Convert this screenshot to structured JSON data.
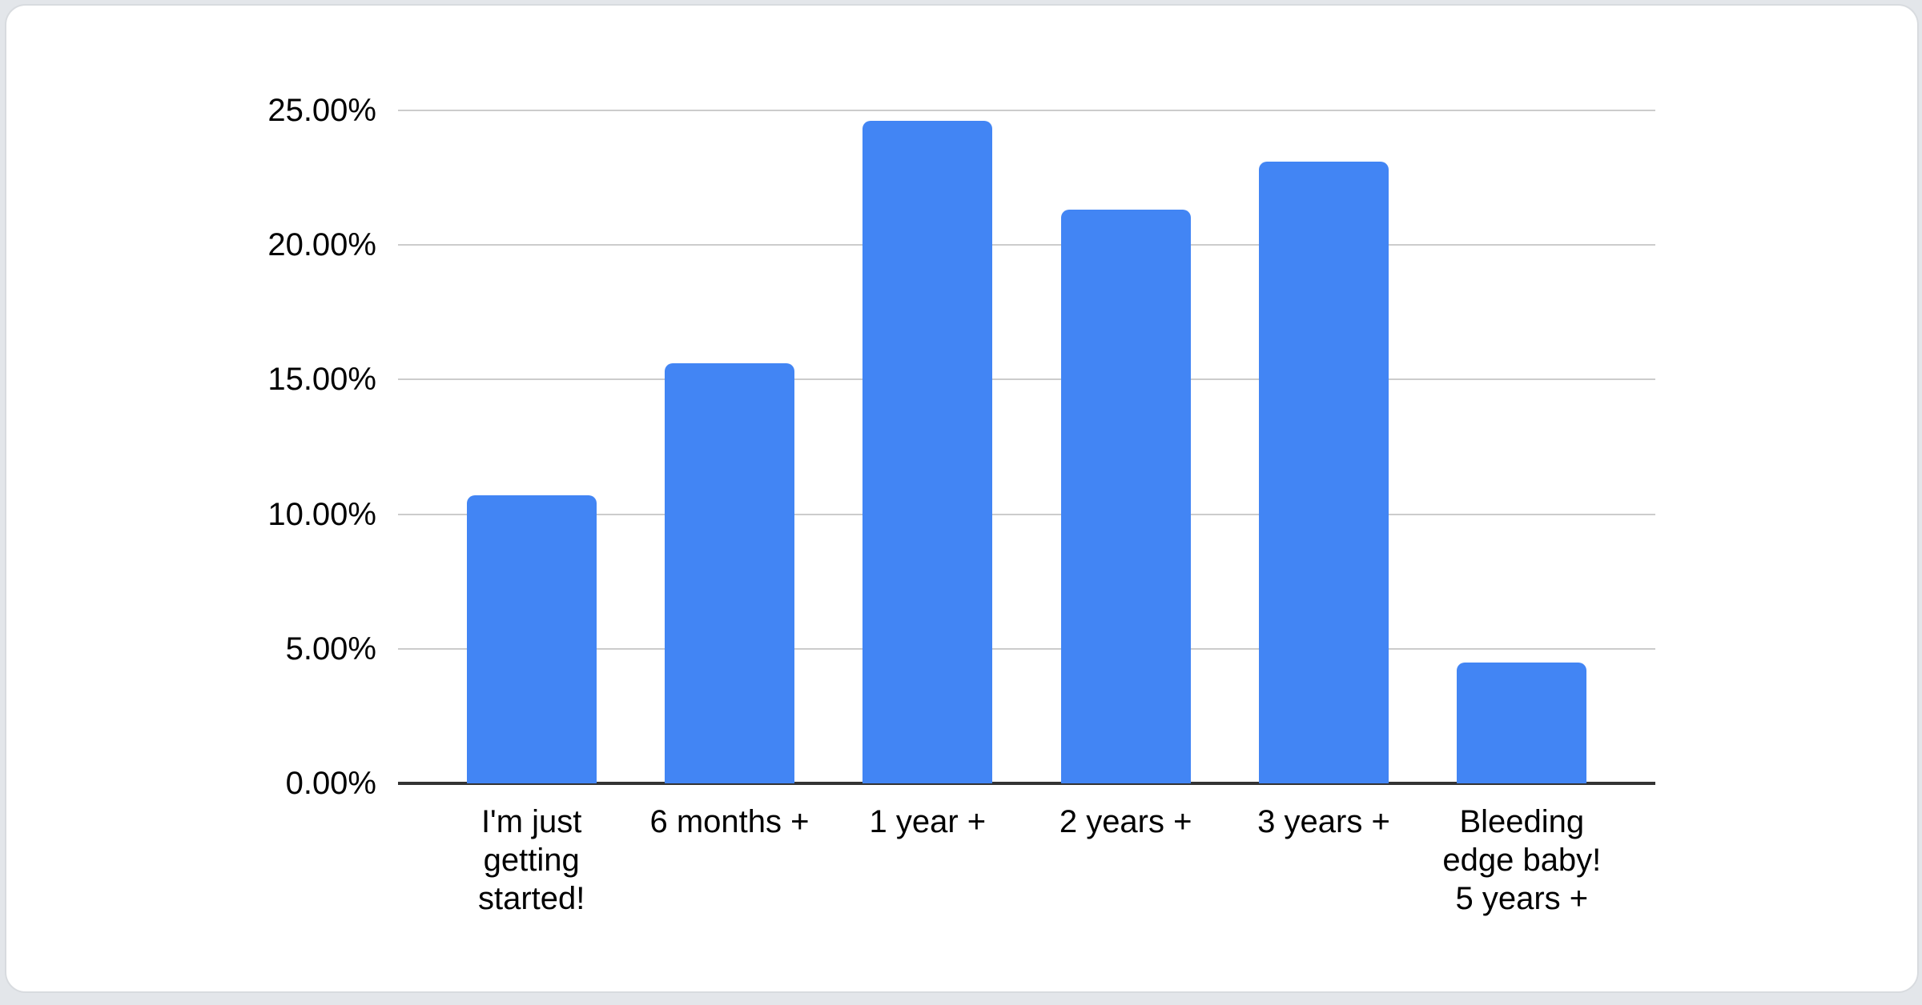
{
  "page": {
    "background_color": "#e3e6ea",
    "card_background": "#ffffff",
    "card_border_color": "#d8dbdf"
  },
  "chart_data": {
    "type": "bar",
    "categories": [
      "I'm just getting started!",
      "6 months +",
      "1 year +",
      "2 years +",
      "3 years +",
      "Bleeding edge baby! 5 years +"
    ],
    "categories_display": [
      "I'm just\ngetting\nstarted!",
      "6 months +",
      "1 year +",
      "2 years +",
      "3 years +",
      "Bleeding\nedge baby!\n5 years +"
    ],
    "values": [
      10.7,
      15.6,
      24.6,
      21.3,
      23.1,
      4.5
    ],
    "value_unit": "%",
    "title": "",
    "xlabel": "",
    "ylabel": "",
    "ylim": [
      0,
      25
    ],
    "y_ticks": [
      {
        "value": 0,
        "label": "0.00%"
      },
      {
        "value": 5,
        "label": "5.00%"
      },
      {
        "value": 10,
        "label": "10.00%"
      },
      {
        "value": 15,
        "label": "15.00%"
      },
      {
        "value": 20,
        "label": "20.00%"
      },
      {
        "value": 25,
        "label": "25.00%"
      }
    ],
    "grid": true,
    "legend": "none",
    "bar_color": "#4285f4",
    "gridline_color": "#cccccc",
    "baseline_color": "#333333",
    "label_color": "#000000"
  }
}
